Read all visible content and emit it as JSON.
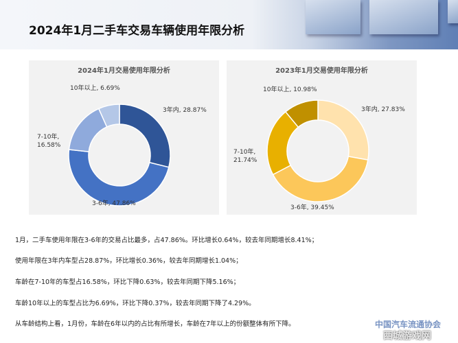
{
  "header": {
    "title": "2024年1月二手车交易车辆使用年限分析"
  },
  "chart_data": [
    {
      "type": "pie",
      "title": "2024年1月交易使用年限分析",
      "categories": [
        "3年内",
        "3-6年",
        "7-10年",
        "10年以上"
      ],
      "values": [
        28.87,
        47.86,
        16.58,
        6.69
      ],
      "labels": [
        "3年内, 28.87%",
        "3-6年, 47.86%",
        "7-10年, 16.58%",
        "10年以上, 6.69%"
      ],
      "colors": [
        "#2f5597",
        "#4472c4",
        "#8faadc",
        "#b4c7e7"
      ],
      "donut": true
    },
    {
      "type": "pie",
      "title": "2023年1月交易使用年限分析",
      "categories": [
        "3年内",
        "3-6年",
        "7-10年",
        "10年以上"
      ],
      "values": [
        27.83,
        39.45,
        21.74,
        10.98
      ],
      "labels": [
        "3年内, 27.83%",
        "3-6年, 39.45%",
        "7-10年, 21.74%",
        "10年以上, 10.98%"
      ],
      "colors": [
        "#ffe2ad",
        "#fcc75a",
        "#e8b000",
        "#c09000"
      ],
      "donut": true
    }
  ],
  "text": [
    "1月，二手车使用年限在3-6年的交易占比最多，占47.86%。环比增长0.64%，较去年同期增长8.41%；",
    "使用年限在3年内车型占28.87%，环比增长0.36%，较去年同期增长1.04%；",
    "车龄在7-10年的车型占16.58%，环比下降0.63%，较去年同期下降5.16%；",
    "车龄10年以上的车型占比为6.69%，环比下降0.37%，较去年同期下降了4.29%。",
    "从车龄结构上看，1月份，车龄在6年以内的占比有所增长，车龄在7年以上的份额整体有所下降。"
  ],
  "watermark": {
    "org": "中国汽车流通协会",
    "site": "西城游戏网"
  }
}
